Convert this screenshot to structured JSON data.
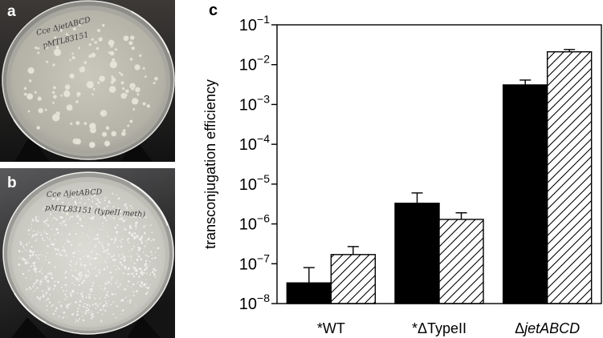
{
  "photo_a": {
    "label": "a",
    "handwriting": [
      "Cce ΔjetABCD",
      "pMTL83151"
    ]
  },
  "photo_b": {
    "label": "b",
    "handwriting": [
      "Cce ΔjetABCD",
      "pMTL83151 (typeII meth)"
    ]
  },
  "panel_c": {
    "label": "c"
  },
  "colors": {
    "panel_label_photo": "#ffffff",
    "panel_label_chart": "#000000",
    "bar_solid": "#000000",
    "bar_hatch_lines": "#000000"
  },
  "chart_data": {
    "type": "bar",
    "title": "",
    "xlabel": "",
    "ylabel": "transconjugation efficiency",
    "yscale": "log",
    "ylim": [
      1e-08,
      0.1
    ],
    "yticks": [
      0.1,
      0.01,
      0.001,
      0.0001,
      1e-05,
      1e-06,
      1e-07,
      1e-08
    ],
    "ytick_labels": [
      {
        "base": "10",
        "exp": "−1"
      },
      {
        "base": "10",
        "exp": "−2"
      },
      {
        "base": "10",
        "exp": "−3"
      },
      {
        "base": "10",
        "exp": "−4"
      },
      {
        "base": "10",
        "exp": "−5"
      },
      {
        "base": "10",
        "exp": "−6"
      },
      {
        "base": "10",
        "exp": "−7"
      },
      {
        "base": "10",
        "exp": "−8"
      }
    ],
    "categories": [
      "*WT",
      "*ΔTypeII",
      "ΔjetABCD"
    ],
    "series": [
      {
        "fill": "#000000",
        "pattern": "solid",
        "values": [
          3.3e-08,
          3.3e-06,
          0.0031
        ],
        "error_upper": [
          8e-08,
          6e-06,
          0.0041
        ]
      },
      {
        "fill": "#ffffff",
        "pattern": "diagonal-hatch",
        "values": [
          1.7e-07,
          1.3e-06,
          0.021
        ],
        "error_upper": [
          2.7e-07,
          1.9e-06,
          0.024
        ]
      }
    ],
    "grid": false,
    "legend": "none"
  }
}
